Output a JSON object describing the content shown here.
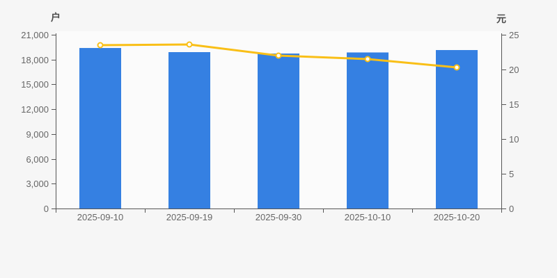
{
  "chart_data": {
    "type": "combo-bar-line",
    "categories": [
      "2025-09-10",
      "2025-09-19",
      "2025-09-30",
      "2025-10-10",
      "2025-10-20"
    ],
    "series": [
      {
        "name": "bar-series",
        "type": "bar",
        "axis": "left",
        "unit": "户",
        "values": [
          19400,
          18900,
          18730,
          18860,
          19150
        ],
        "color": "#3580e2"
      },
      {
        "name": "line-series",
        "type": "line",
        "axis": "right",
        "unit": "元",
        "values": [
          23.5,
          23.6,
          22.0,
          21.5,
          20.3
        ],
        "color": "#f9bf17",
        "marker": "hollow-circle",
        "marker_fill": "#ffffff"
      }
    ],
    "left_axis": {
      "name": "户",
      "min": 0,
      "max": 21000,
      "interval": 3000,
      "tick_labels": [
        "0",
        "3,000",
        "6,000",
        "9,000",
        "12,000",
        "15,000",
        "18,000",
        "21,000"
      ]
    },
    "right_axis": {
      "name": "元",
      "min": 0,
      "max": 25,
      "interval": 5,
      "tick_labels": [
        "0",
        "5",
        "10",
        "15",
        "20",
        "25"
      ]
    },
    "grid": false,
    "legend": false,
    "title": ""
  },
  "colors": {
    "page_background": "#f6f6f6",
    "plot_background": "#fbfbfb",
    "axis_line": "#555555",
    "tick_text": "#666666",
    "axis_name_text": "#4d4d4d",
    "bar": "#3580e2",
    "line": "#f9bf17"
  }
}
